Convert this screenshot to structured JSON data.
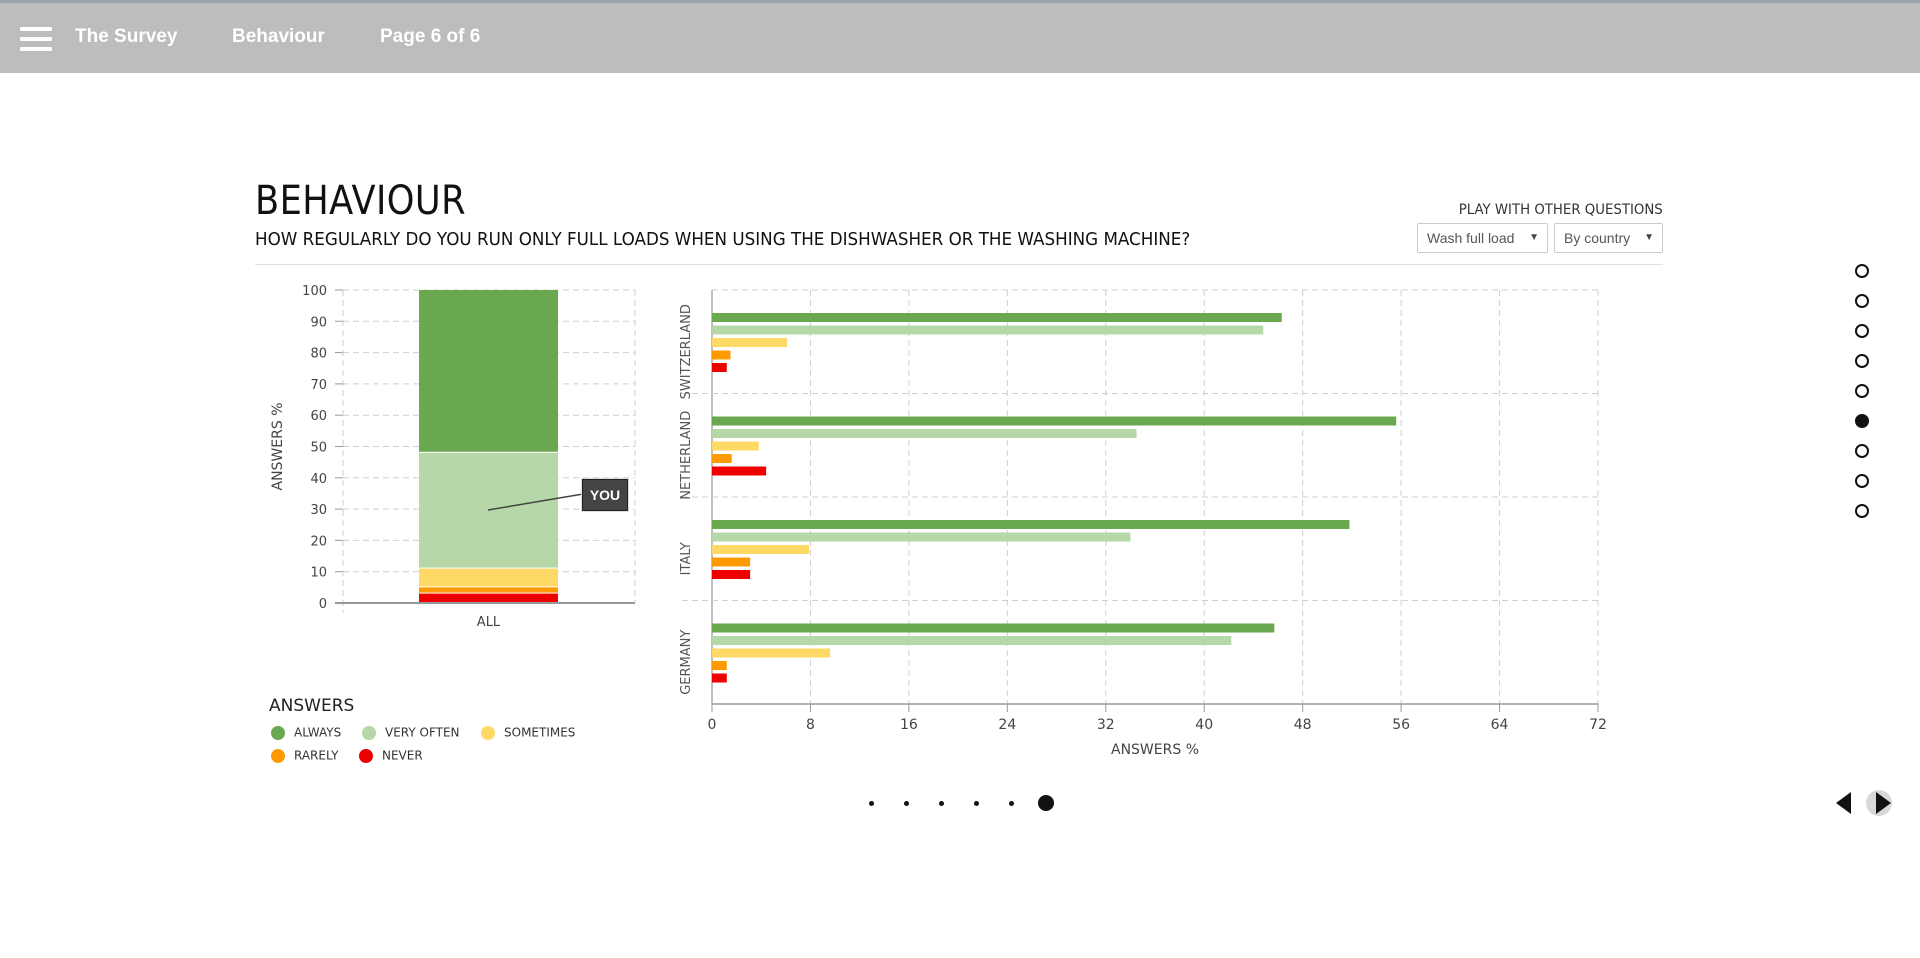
{
  "topbar": {
    "menu_icon": "hamburger-menu-icon",
    "items": [
      "The Survey",
      "Behaviour",
      "Page 6 of 6"
    ]
  },
  "header": {
    "title": "BEHAVIOUR",
    "question": "HOW REGULARLY DO YOU RUN ONLY FULL LOADS WHEN USING THE DISHWASHER OR THE WASHING MACHINE?",
    "play_label": "PLAY WITH OTHER QUESTIONS",
    "question_select": "Wash full load",
    "group_select": "By country"
  },
  "legend": {
    "title": "ANSWERS",
    "items": [
      {
        "label": "ALWAYS",
        "color": "#6aa84f"
      },
      {
        "label": "VERY OFTEN",
        "color": "#b6d7a8"
      },
      {
        "label": "SOMETIMES",
        "color": "#ffd966"
      },
      {
        "label": "RARELY",
        "color": "#ff9900"
      },
      {
        "label": "NEVER",
        "color": "#ee0000"
      }
    ]
  },
  "tooltip": {
    "you_label": "YOU"
  },
  "chart_data": [
    {
      "type": "bar",
      "stacked": true,
      "categories": [
        "ALL"
      ],
      "ylabel": "ANSWERS %",
      "ylim": [
        0,
        100
      ],
      "yticks": [
        0,
        10,
        20,
        30,
        40,
        50,
        60,
        70,
        80,
        90,
        100
      ],
      "grid": true,
      "series": [
        {
          "name": "NEVER",
          "values": [
            3
          ]
        },
        {
          "name": "RARELY",
          "values": [
            2
          ]
        },
        {
          "name": "SOMETIMES",
          "values": [
            6
          ]
        },
        {
          "name": "VERY OFTEN",
          "values": [
            37
          ]
        },
        {
          "name": "ALWAYS",
          "values": [
            52
          ]
        }
      ]
    },
    {
      "type": "bar",
      "orientation": "horizontal",
      "categories": [
        "SWITZERLAND",
        "NETHERLAND",
        "ITALY",
        "GERMANY"
      ],
      "xlabel": "ANSWERS %",
      "xlim": [
        0,
        72
      ],
      "xticks": [
        0,
        8,
        16,
        24,
        32,
        40,
        48,
        56,
        64,
        72
      ],
      "grid": true,
      "series": [
        {
          "name": "ALWAYS",
          "values": [
            46.3,
            55.6,
            51.8,
            45.7
          ]
        },
        {
          "name": "VERY OFTEN",
          "values": [
            44.8,
            34.5,
            34.0,
            42.2
          ]
        },
        {
          "name": "SOMETIMES",
          "values": [
            6.1,
            3.8,
            7.9,
            9.6
          ]
        },
        {
          "name": "RARELY",
          "values": [
            1.5,
            1.6,
            3.1,
            1.2
          ]
        },
        {
          "name": "NEVER",
          "values": [
            1.2,
            4.4,
            3.1,
            1.2
          ]
        }
      ]
    }
  ],
  "pagination": {
    "count": 6,
    "active": 5
  },
  "side_nav": {
    "count": 9,
    "active": 5
  },
  "nav": {
    "prev_icon": "prev-arrow-icon",
    "next_icon": "next-arrow-icon"
  }
}
